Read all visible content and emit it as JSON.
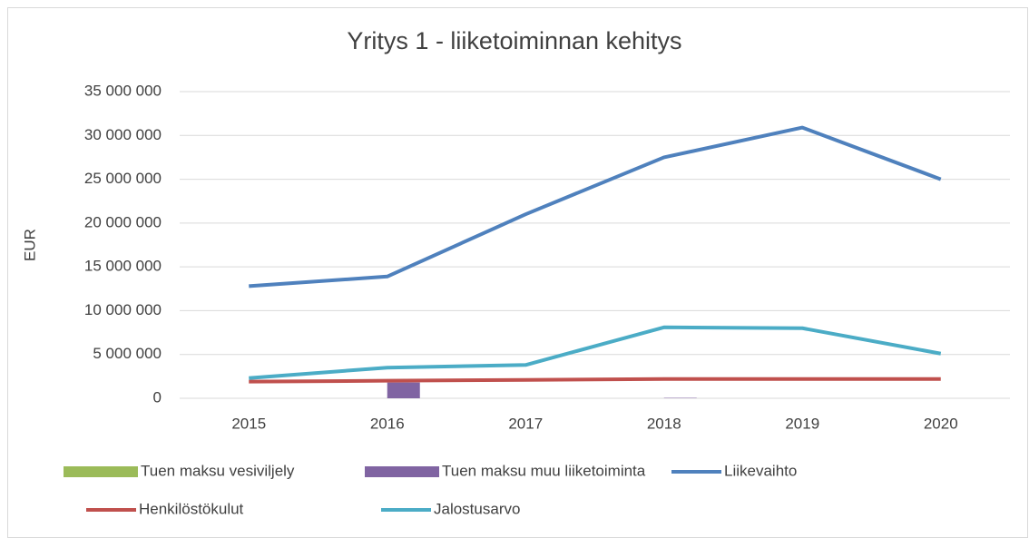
{
  "chart_data": {
    "type": "combo",
    "title": "Yritys 1 - liiketoiminnan kehitys",
    "y_label": "EUR",
    "categories": [
      "2015",
      "2016",
      "2017",
      "2018",
      "2019",
      "2020"
    ],
    "series": [
      {
        "name": "Tuen maksu vesiviljely",
        "type": "bar",
        "color": "#9bbb59",
        "values": [
          0,
          0,
          0,
          0,
          0,
          0
        ]
      },
      {
        "name": "Tuen maksu muu liiketoiminta",
        "type": "bar",
        "color": "#8064a2",
        "values": [
          0,
          1800000,
          0,
          50000,
          0,
          0
        ]
      },
      {
        "name": "Liikevaihto",
        "type": "line",
        "color": "#4f81bd",
        "values": [
          12800000,
          13900000,
          21000000,
          27500000,
          30900000,
          25000000
        ]
      },
      {
        "name": "Henkilöstökulut",
        "type": "line",
        "color": "#c0504d",
        "values": [
          1900000,
          2000000,
          2100000,
          2200000,
          2200000,
          2200000
        ]
      },
      {
        "name": "Jalostusarvo",
        "type": "line",
        "color": "#4bacc6",
        "values": [
          2300000,
          3500000,
          3800000,
          8100000,
          8000000,
          5100000
        ]
      }
    ],
    "ylim": [
      0,
      35000000
    ],
    "yticks": [
      0,
      {
        "value": 5000000,
        "label": "5 000 000"
      },
      {
        "value": 10000000,
        "label": "10 000 000"
      },
      {
        "value": 15000000,
        "label": "15 000 000"
      },
      {
        "value": 20000000,
        "label": "20 000 000"
      },
      {
        "value": 25000000,
        "label": "25 000 000"
      },
      {
        "value": 30000000,
        "label": "30 000 000"
      },
      {
        "value": 35000000,
        "label": "35 000 000"
      }
    ],
    "grid": true,
    "legend": "bottom"
  }
}
